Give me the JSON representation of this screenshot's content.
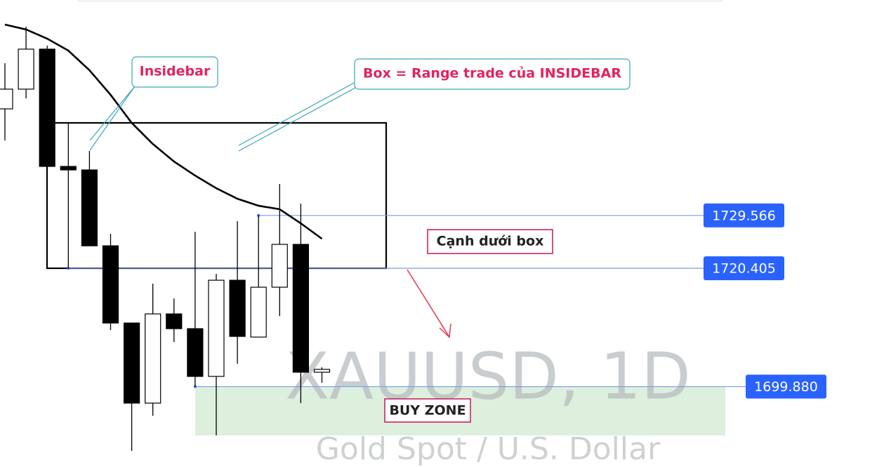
{
  "chart_data": {
    "type": "candlestick",
    "watermark": "XAUUSD, 1D",
    "watermark_subtitle": "Gold Spot / U.S. Dollar",
    "ylim": [
      1685.94,
      1766.93
    ],
    "up_color": "#ffffff",
    "down_color": "#000000",
    "wick_color": "#000000",
    "open": [
      1748.05,
      1751.47,
      1758.41,
      1738.07,
      1737.46,
      1724.3,
      1710.91,
      1697.02,
      1712.49,
      1709.93,
      1701.65,
      1718.33,
      1708.47,
      1717.12,
      1724.55,
      1702.38
    ],
    "high": [
      1755.97,
      1762.31,
      1759.02,
      1745.62,
      1740.75,
      1726.37,
      1710.91,
      1717.73,
      1715.17,
      1726.74,
      1719.43,
      1728.57,
      1729.566,
      1735.02,
      1731.61,
      1703.23
    ],
    "low": [
      1742.57,
      1749.88,
      1738.07,
      1720.405,
      1724.3,
      1709.69,
      1688.74,
      1694.83,
      1707.62,
      1699.88,
      1691.42,
      1703.84,
      1708.47,
      1712.12,
      1697.02,
      1700.55
    ],
    "close": [
      1751.47,
      1758.41,
      1738.07,
      1737.46,
      1724.3,
      1710.91,
      1697.02,
      1712.49,
      1709.93,
      1701.65,
      1718.33,
      1708.59,
      1717.12,
      1724.55,
      1702.38,
      1702.87
    ],
    "moving_average": {
      "color": "#000000",
      "values": [
        1762.67,
        1761.82,
        1760.23,
        1758.16,
        1754.75,
        1750.49,
        1745.62,
        1741.96,
        1738.92,
        1736.48,
        1734.29,
        1732.46,
        1731.25,
        1730.64,
        1728.2,
        1725.52
      ]
    },
    "price_lines": [
      1729.566,
      1720.405,
      {
        "value": 1699.88,
        "label": "1699.880"
      }
    ],
    "price_line_color": "#2962ff",
    "annotations": {
      "insidebar": "Insidebar",
      "box": "Box = Range trade của INSIDEBAR",
      "box_bottom": "Cạnh dưới box",
      "buy_zone": "BUY ZONE"
    }
  }
}
